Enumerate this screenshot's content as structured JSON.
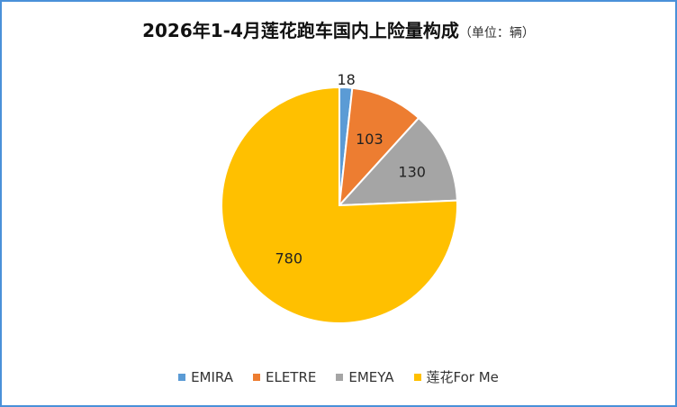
{
  "chart_data": {
    "type": "pie",
    "title": "2026年1-4月莲花跑车国内上险量构成",
    "unit_note": "（单位：辆）",
    "categories": [
      "EMIRA",
      "ELETRE",
      "EMEYA",
      "莲花For Me"
    ],
    "values": [
      18,
      103,
      130,
      780
    ],
    "colors": [
      "#5b9bd5",
      "#ed7d31",
      "#a5a5a5",
      "#ffc000"
    ],
    "data_labels": [
      "18",
      "103",
      "130",
      "780"
    ],
    "legend_position": "bottom",
    "start_angle": "top, clockwise"
  }
}
